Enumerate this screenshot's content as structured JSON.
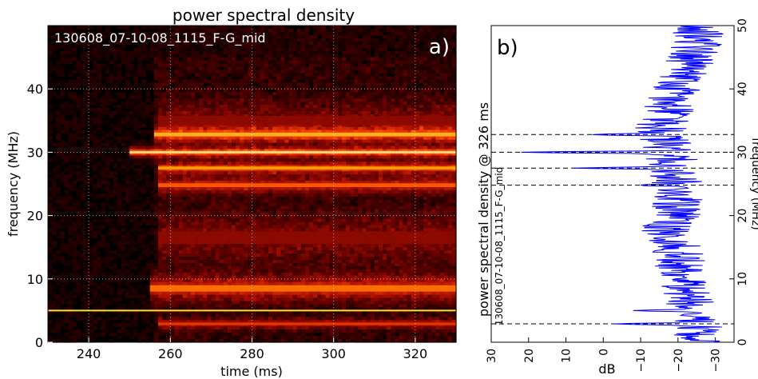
{
  "chart_data": [
    {
      "id": "a",
      "type": "heatmap",
      "title": "power spectral density",
      "panel_label": "a)",
      "annotation": "130608_07-10-08_1115_F-G_mid",
      "xlabel": "time (ms)",
      "ylabel": "frequency (MHz)",
      "xlim": [
        230,
        330
      ],
      "ylim": [
        0,
        50
      ],
      "xticks": [
        240,
        260,
        280,
        300,
        320
      ],
      "yticks": [
        0,
        10,
        20,
        30,
        40
      ],
      "grid": true,
      "colormap": [
        "#000000",
        "#5a0000",
        "#b01000",
        "#ff4a00",
        "#ffb000",
        "#ffffd0"
      ],
      "background_noise_intensity": 0.05,
      "onset_ms": 256,
      "bands": [
        {
          "freq_mhz": 2.9,
          "start_ms": 257,
          "end_ms": 330,
          "intensity": 0.6,
          "width_mhz": 0.8
        },
        {
          "freq_mhz": 8.5,
          "start_ms": 255,
          "end_ms": 330,
          "intensity": 0.75,
          "width_mhz": 2.0
        },
        {
          "freq_mhz": 16.5,
          "start_ms": 257,
          "end_ms": 330,
          "intensity": 0.35,
          "width_mhz": 4.0
        },
        {
          "freq_mhz": 24.8,
          "start_ms": 257,
          "end_ms": 330,
          "intensity": 0.7,
          "width_mhz": 1.2
        },
        {
          "freq_mhz": 27.5,
          "start_ms": 257,
          "end_ms": 330,
          "intensity": 0.85,
          "width_mhz": 1.0
        },
        {
          "freq_mhz": 30.0,
          "start_ms": 250,
          "end_ms": 330,
          "intensity": 1.0,
          "width_mhz": 0.8
        },
        {
          "freq_mhz": 32.8,
          "start_ms": 256,
          "end_ms": 330,
          "intensity": 0.9,
          "width_mhz": 1.2
        },
        {
          "freq_mhz": 35.0,
          "start_ms": 257,
          "end_ms": 330,
          "intensity": 0.35,
          "width_mhz": 3.0
        }
      ],
      "constant_line": {
        "freq_mhz": 5.0,
        "color": "#ffe030"
      }
    },
    {
      "id": "b",
      "type": "line",
      "panel_label": "b)",
      "left_label": "power spectral density @ 326 ms",
      "left_sublabel": "130608_07-10-08_1115_F-G_mid",
      "xlabel": "dB",
      "ylabel": "frequency (MHz)",
      "xlim": [
        30,
        -35
      ],
      "ylim": [
        0,
        50
      ],
      "xticks": [
        30,
        20,
        10,
        0,
        -10,
        -20,
        -30
      ],
      "yticks": [
        0,
        10,
        20,
        30,
        40,
        50
      ],
      "color": "#0000ff",
      "dashed_lines_mhz": [
        2.9,
        24.8,
        27.5,
        30.0,
        32.8
      ],
      "peaks": [
        {
          "freq_mhz": 2.9,
          "db": -3
        },
        {
          "freq_mhz": 5.0,
          "db": -8
        },
        {
          "freq_mhz": 24.8,
          "db": -10
        },
        {
          "freq_mhz": 27.5,
          "db": 8
        },
        {
          "freq_mhz": 30.0,
          "db": 22
        },
        {
          "freq_mhz": 32.8,
          "db": 3
        }
      ],
      "baseline_profile": [
        [
          0,
          -26
        ],
        [
          5,
          -24
        ],
        [
          10,
          -21
        ],
        [
          15,
          -20
        ],
        [
          17,
          -15
        ],
        [
          20,
          -20
        ],
        [
          25,
          -20
        ],
        [
          30,
          -18
        ],
        [
          33,
          -15
        ],
        [
          38,
          -18
        ],
        [
          45,
          -24
        ],
        [
          50,
          -26
        ]
      ]
    }
  ]
}
